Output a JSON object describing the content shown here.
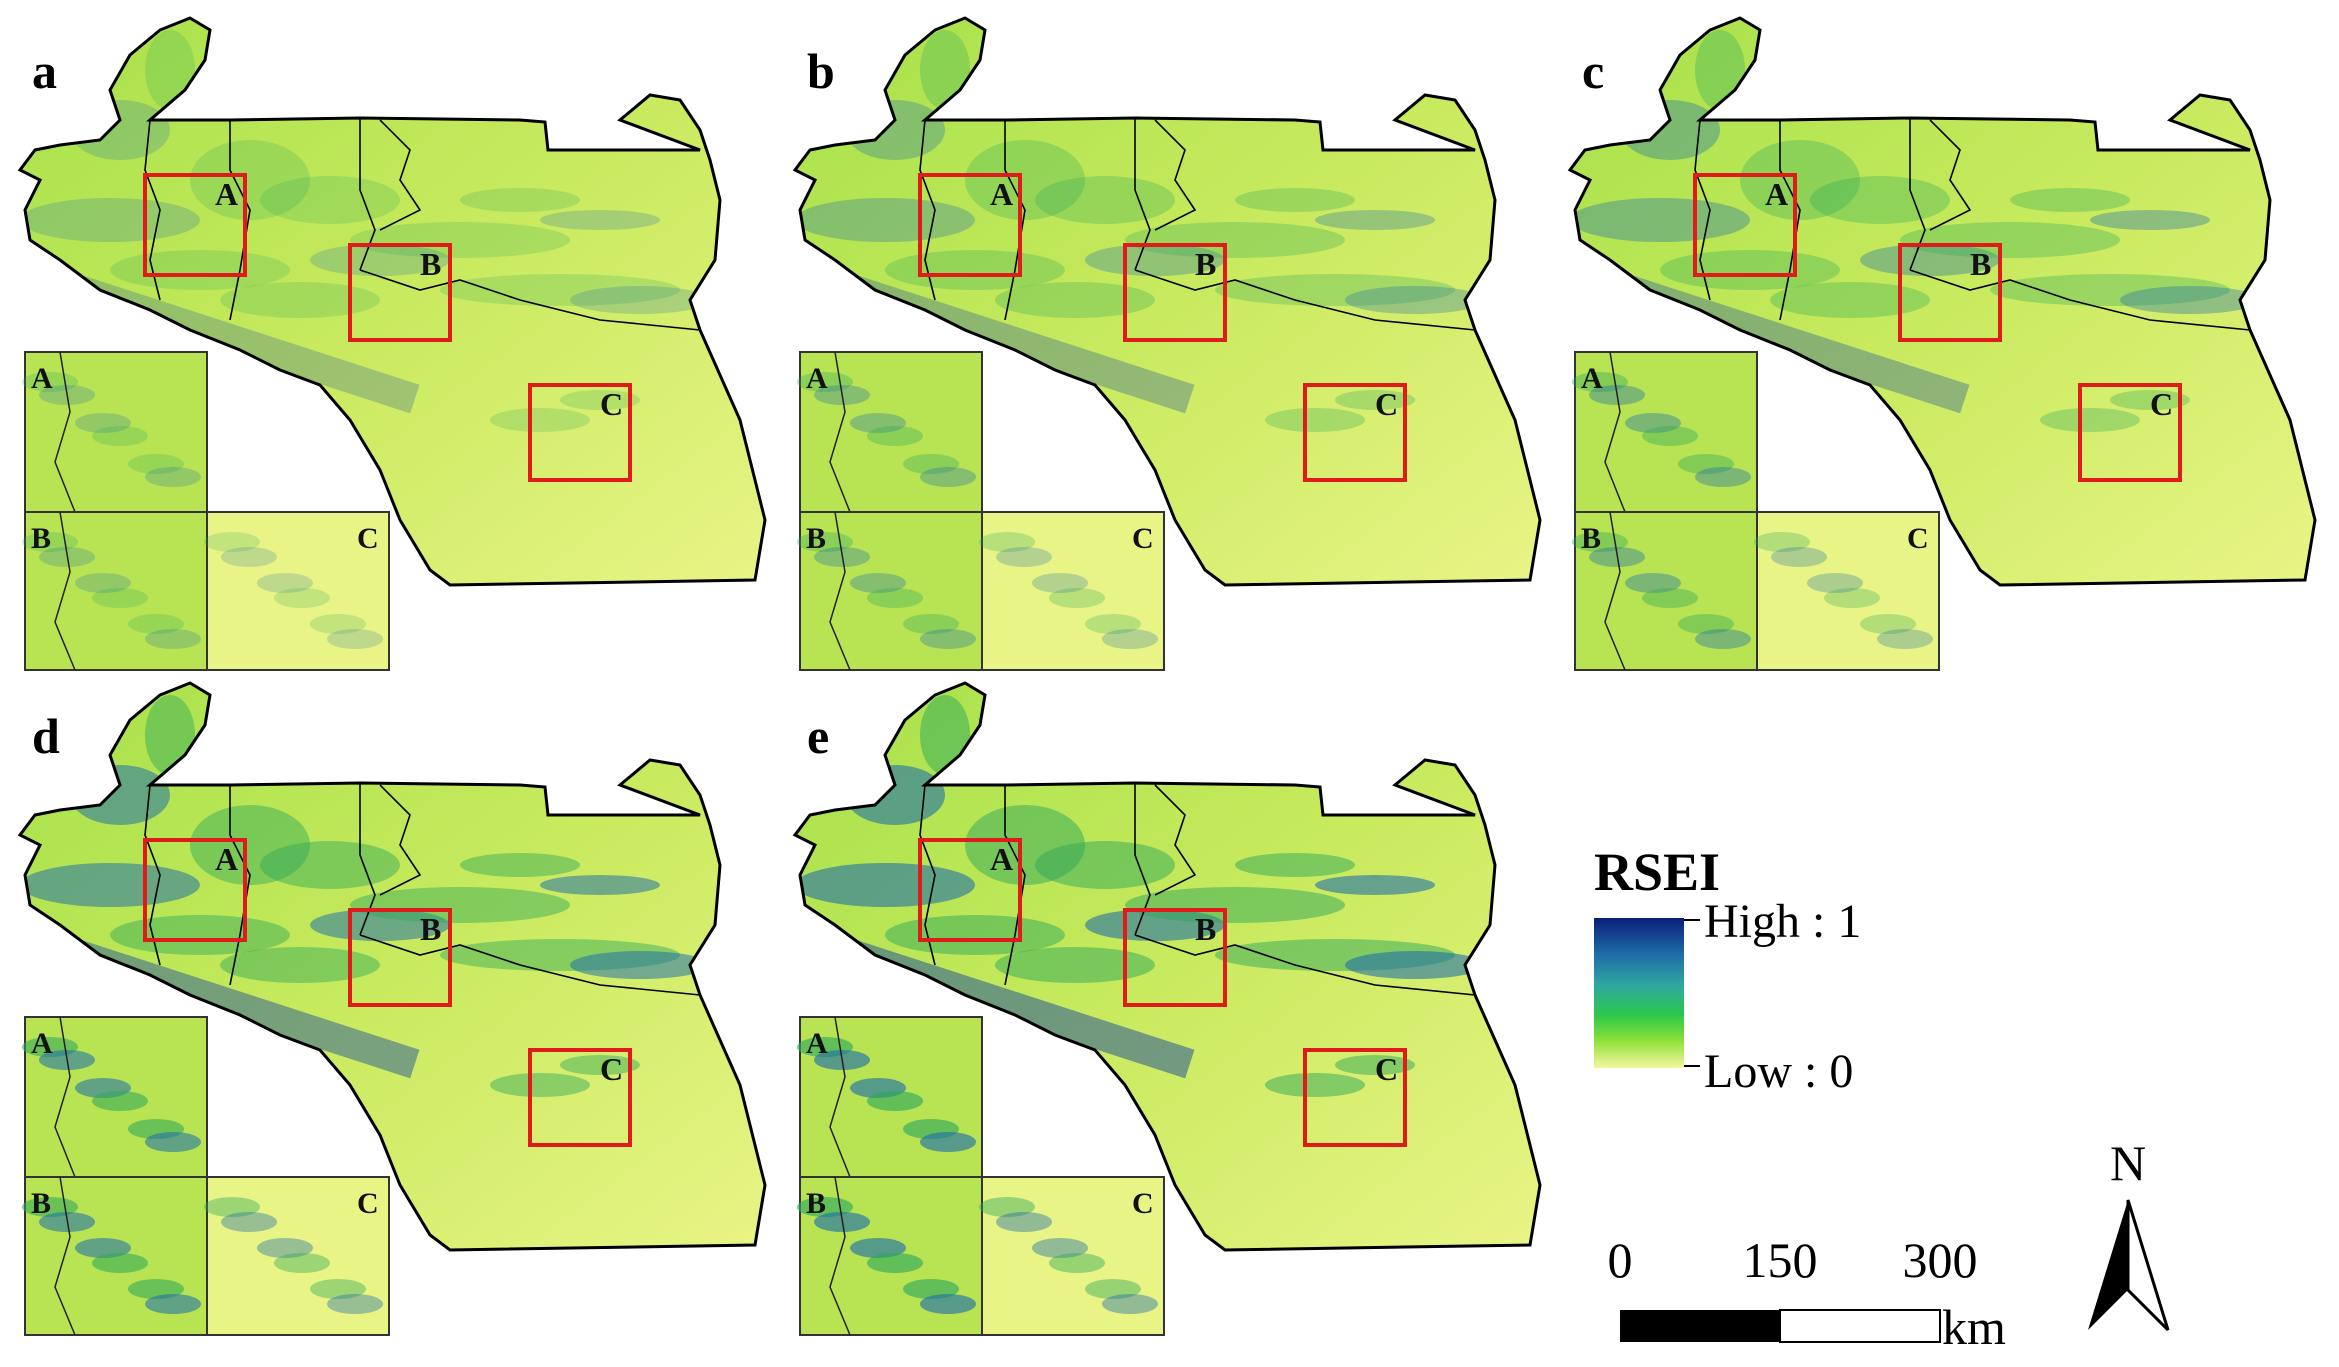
{
  "figure": {
    "panels": [
      {
        "label": "a",
        "intensity": 0.15
      },
      {
        "label": "b",
        "intensity": 0.3
      },
      {
        "label": "c",
        "intensity": 0.4
      },
      {
        "label": "d",
        "intensity": 0.7
      },
      {
        "label": "e",
        "intensity": 0.8
      }
    ],
    "zoom_boxes": [
      "A",
      "B",
      "C"
    ],
    "insets": [
      "A",
      "B",
      "C"
    ]
  },
  "legend": {
    "title": "RSEI",
    "high_label": "High : 1",
    "low_label": "Low : 0",
    "colors": [
      "#0a1f7a",
      "#1f6fa8",
      "#2fa8a0",
      "#2cc84a",
      "#8fe03a",
      "#f5f7a0"
    ]
  },
  "scale_bar": {
    "ticks": [
      "0",
      "150",
      "300"
    ],
    "unit": "km"
  },
  "north_arrow": {
    "label": "N"
  },
  "colors": {
    "box": "#e01b1b",
    "outline": "#000000"
  }
}
